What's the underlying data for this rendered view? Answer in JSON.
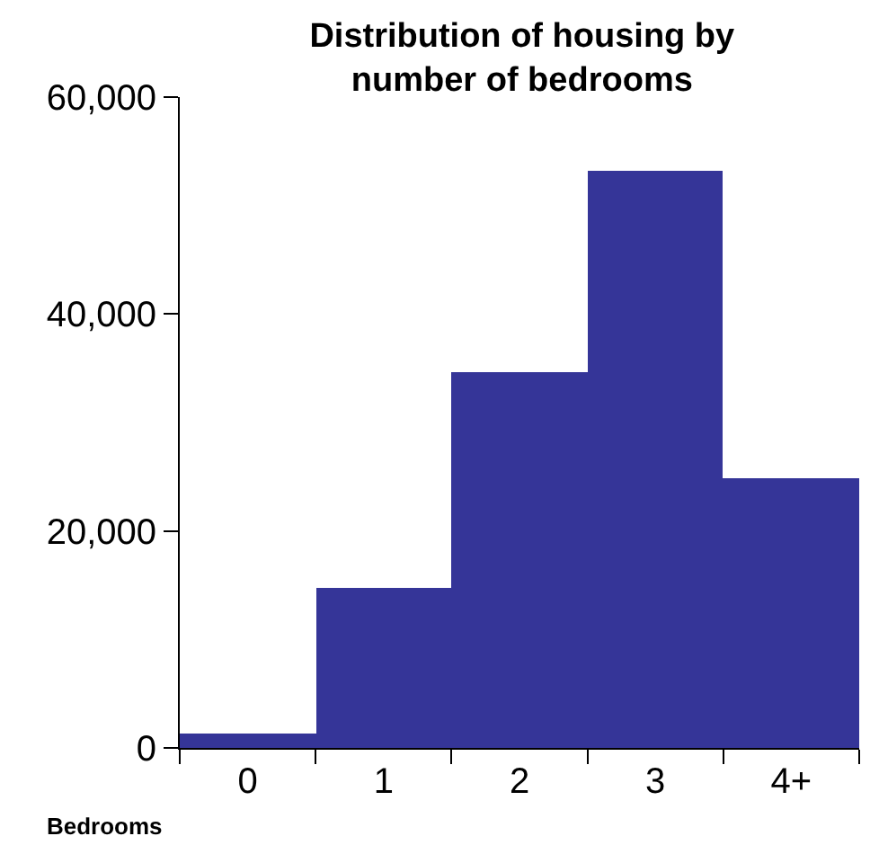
{
  "chart_data": {
    "type": "bar",
    "title": "Distribution of housing by\nnumber of bedrooms",
    "xlabel": "Bedrooms",
    "categories": [
      "0",
      "1",
      "2",
      "3",
      "4+"
    ],
    "values": [
      1300,
      14700,
      34700,
      53200,
      24800
    ],
    "color": "#353598",
    "ylim": [
      0,
      60000
    ],
    "yticks": [
      {
        "value": 0,
        "label": "0"
      },
      {
        "value": 20000,
        "label": "20,000"
      },
      {
        "value": 40000,
        "label": "40,000"
      },
      {
        "value": 60000,
        "label": "60,000"
      }
    ],
    "legend": false
  }
}
